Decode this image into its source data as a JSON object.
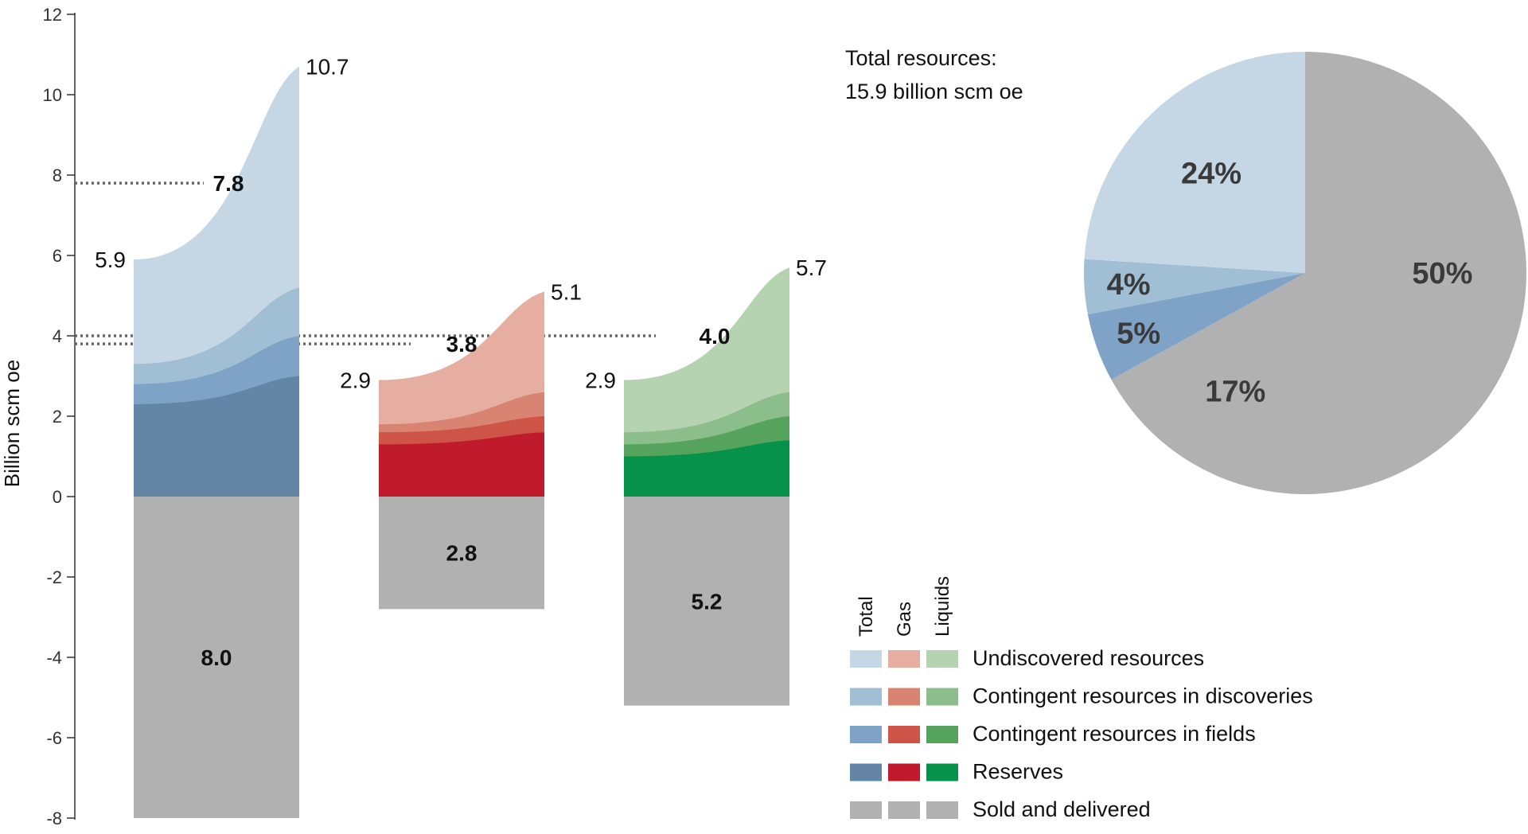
{
  "colors": {
    "total": [
      "#c5d7e4",
      "#a0bfd4",
      "#7fa3c6",
      "#6385a6"
    ],
    "gas": [
      "#e6aea1",
      "#d98473",
      "#cd5447",
      "#bf1b2c"
    ],
    "liquids": [
      "#b5d3b0",
      "#8cbe8c",
      "#55a35d",
      "#06924a"
    ],
    "sold": "#b1b1b1",
    "pie": [
      "#c5d7e4",
      "#a0bfd4",
      "#7fa3c6",
      "#6385a6",
      "#b1b1b1"
    ]
  },
  "chart_data": [
    {
      "type": "area",
      "ylabel": "Billion scm oe",
      "ylim": [
        -8,
        12
      ],
      "yticks": [
        -8,
        -6,
        -4,
        -2,
        0,
        2,
        4,
        6,
        8,
        10,
        12
      ],
      "groups": [
        {
          "name": "Total",
          "start_label": "5.9",
          "end_label": "10.7",
          "mid_label": "7.8",
          "mid_value": 7.8,
          "sold_label": "8.0",
          "sold_value": -8.0,
          "layers": [
            {
              "series": "Reserves",
              "start": 2.3,
              "end": 3.0
            },
            {
              "series": "Contingent resources in fields",
              "start": 2.8,
              "end": 4.0
            },
            {
              "series": "Contingent resources in discoveries",
              "start": 3.3,
              "end": 5.2
            },
            {
              "series": "Undiscovered resources",
              "start": 5.9,
              "end": 10.7
            }
          ]
        },
        {
          "name": "Gas",
          "start_label": "2.9",
          "end_label": "5.1",
          "mid_label": "3.8",
          "mid_value": 3.8,
          "sold_label": "2.8",
          "sold_value": -2.8,
          "layers": [
            {
              "series": "Reserves",
              "start": 1.3,
              "end": 1.6
            },
            {
              "series": "Contingent resources in fields",
              "start": 1.6,
              "end": 2.0
            },
            {
              "series": "Contingent resources in discoveries",
              "start": 1.8,
              "end": 2.6
            },
            {
              "series": "Undiscovered resources",
              "start": 2.9,
              "end": 5.1
            }
          ]
        },
        {
          "name": "Liquids",
          "start_label": "2.9",
          "end_label": "5.7",
          "mid_label": "4.0",
          "mid_value": 4.0,
          "sold_label": "5.2",
          "sold_value": -5.2,
          "layers": [
            {
              "series": "Reserves",
              "start": 1.0,
              "end": 1.4
            },
            {
              "series": "Contingent resources in fields",
              "start": 1.3,
              "end": 2.0
            },
            {
              "series": "Contingent resources in discoveries",
              "start": 1.6,
              "end": 2.6
            },
            {
              "series": "Undiscovered resources",
              "start": 2.9,
              "end": 5.7
            }
          ]
        }
      ]
    },
    {
      "type": "pie",
      "note_line1": "Total resources:",
      "note_line2": "15.9 billion scm oe",
      "slices": [
        {
          "series": "Sold and delivered",
          "value": 50,
          "label": "50%"
        },
        {
          "series": "Reserves",
          "value": 17,
          "label": "17%"
        },
        {
          "series": "Contingent resources in fields",
          "value": 5,
          "label": "5%"
        },
        {
          "series": "Contingent resources in discoveries",
          "value": 4,
          "label": "4%"
        },
        {
          "series": "Undiscovered resources",
          "value": 24,
          "label": "24%"
        }
      ]
    }
  ],
  "legend": {
    "column_headers": [
      "Total",
      "Gas",
      "Liquids"
    ],
    "items": [
      {
        "label": "Undiscovered resources",
        "colors": [
          "#c5d7e4",
          "#e6aea1",
          "#b5d3b0"
        ]
      },
      {
        "label": "Contingent resources in discoveries",
        "colors": [
          "#a0bfd4",
          "#d98473",
          "#8cbe8c"
        ]
      },
      {
        "label": "Contingent resources in fields",
        "colors": [
          "#7fa3c6",
          "#cd5447",
          "#55a35d"
        ]
      },
      {
        "label": "Reserves",
        "colors": [
          "#6385a6",
          "#bf1b2c",
          "#06924a"
        ]
      },
      {
        "label": "Sold and delivered",
        "colors": [
          "#b1b1b1",
          "#b1b1b1",
          "#b1b1b1"
        ]
      }
    ]
  }
}
